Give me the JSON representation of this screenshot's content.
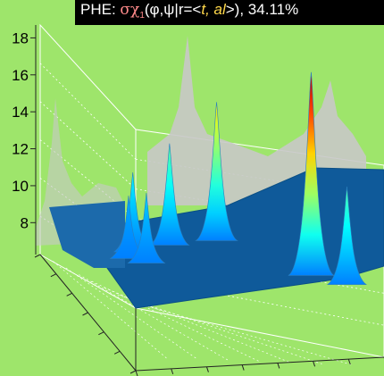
{
  "chart_data": {
    "type": "surface",
    "title": {
      "prefix": "PHE: ",
      "symbol": "σχ",
      "subscript": "1",
      "mid": "(φ,ψ|r=<",
      "italic": "t, al",
      "suffix": ">), 34.11%"
    },
    "zaxis": {
      "ticks": [
        8,
        10,
        12,
        14,
        16,
        18
      ],
      "range": [
        7,
        18.6
      ]
    },
    "grid": true,
    "colormap": "jet",
    "colors": {
      "background": "#9ee56b",
      "floor": "#0f5a9a",
      "shadow": "#c8c8c8",
      "box": "#ffffff",
      "title_bg": "#000000"
    },
    "peaks": [
      {
        "phi": 0.75,
        "psi": 0.72,
        "z": 18.0
      },
      {
        "phi": 0.05,
        "psi": 0.62,
        "z": 14.5
      },
      {
        "phi": 0.05,
        "psi": 0.45,
        "z": 12.5
      },
      {
        "phi": 0.1,
        "psi": 0.3,
        "z": 11.3
      },
      {
        "phi": 0.2,
        "psi": 0.25,
        "z": 10.4
      },
      {
        "phi": 0.3,
        "psi": 0.28,
        "z": 10.8
      },
      {
        "phi": 0.95,
        "psi": 0.78,
        "z": 12.3
      }
    ]
  }
}
